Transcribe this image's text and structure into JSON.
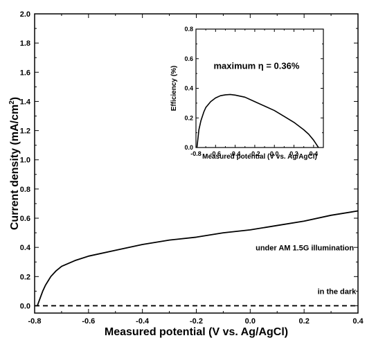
{
  "chart_data": [
    {
      "type": "line",
      "xlabel": "Measured potential (V vs. Ag/AgCl)",
      "ylabel_main": "Current density (mA/cm",
      "ylabel_sup": "2",
      "ylabel_close": ")",
      "xlim": [
        -0.8,
        0.4
      ],
      "ylim": [
        -0.05,
        2.0
      ],
      "x_ticks": [
        "-0.8",
        "-0.6",
        "-0.4",
        "-0.2",
        "0.0",
        "0.2",
        "0.4"
      ],
      "y_ticks": [
        "0.0",
        "0.2",
        "0.4",
        "0.6",
        "0.8",
        "1.0",
        "1.2",
        "1.4",
        "1.6",
        "1.8",
        "2.0"
      ],
      "series": [
        {
          "style": "solid",
          "x": [
            -0.79,
            -0.78,
            -0.77,
            -0.76,
            -0.75,
            -0.74,
            -0.72,
            -0.7,
            -0.65,
            -0.6,
            -0.5,
            -0.4,
            -0.3,
            -0.2,
            -0.1,
            0.0,
            0.1,
            0.2,
            0.3,
            0.4
          ],
          "y": [
            0.0,
            0.05,
            0.1,
            0.14,
            0.17,
            0.2,
            0.24,
            0.27,
            0.31,
            0.34,
            0.38,
            0.42,
            0.45,
            0.47,
            0.5,
            0.52,
            0.55,
            0.58,
            0.62,
            0.65
          ]
        },
        {
          "style": "dashed",
          "x": [
            -0.8,
            0.4
          ],
          "y": [
            0.0,
            0.0
          ]
        }
      ],
      "annotations": [
        {
          "text": "under AM 1.5G illumination",
          "x": 0.02,
          "y": 0.38
        },
        {
          "text": "in the dark",
          "x": 0.25,
          "y": 0.08
        }
      ]
    },
    {
      "type": "line",
      "xlabel": "Measured potential (V vs. Ag/AgCl)",
      "ylabel": "Efficiency (%)",
      "xlim": [
        -0.8,
        0.5
      ],
      "ylim": [
        0.0,
        0.8
      ],
      "x_ticks": [
        "-0.8",
        "-0.6",
        "-0.4",
        "-0.2",
        "0.0",
        "0.2",
        "0.4"
      ],
      "y_ticks": [
        "0.0",
        "0.2",
        "0.4",
        "0.6",
        "0.8"
      ],
      "series": [
        {
          "style": "solid",
          "x": [
            -0.79,
            -0.77,
            -0.75,
            -0.72,
            -0.7,
            -0.65,
            -0.6,
            -0.55,
            -0.5,
            -0.45,
            -0.4,
            -0.3,
            -0.2,
            -0.1,
            0.0,
            0.1,
            0.2,
            0.3,
            0.35,
            0.4,
            0.43,
            0.45
          ],
          "y": [
            0.0,
            0.12,
            0.18,
            0.24,
            0.27,
            0.31,
            0.335,
            0.35,
            0.356,
            0.358,
            0.354,
            0.34,
            0.31,
            0.28,
            0.25,
            0.21,
            0.17,
            0.12,
            0.09,
            0.05,
            0.02,
            0.0
          ]
        }
      ],
      "annotations": [
        {
          "text": "maximum η = 0.36%",
          "x": -0.62,
          "y": 0.53
        }
      ]
    }
  ]
}
